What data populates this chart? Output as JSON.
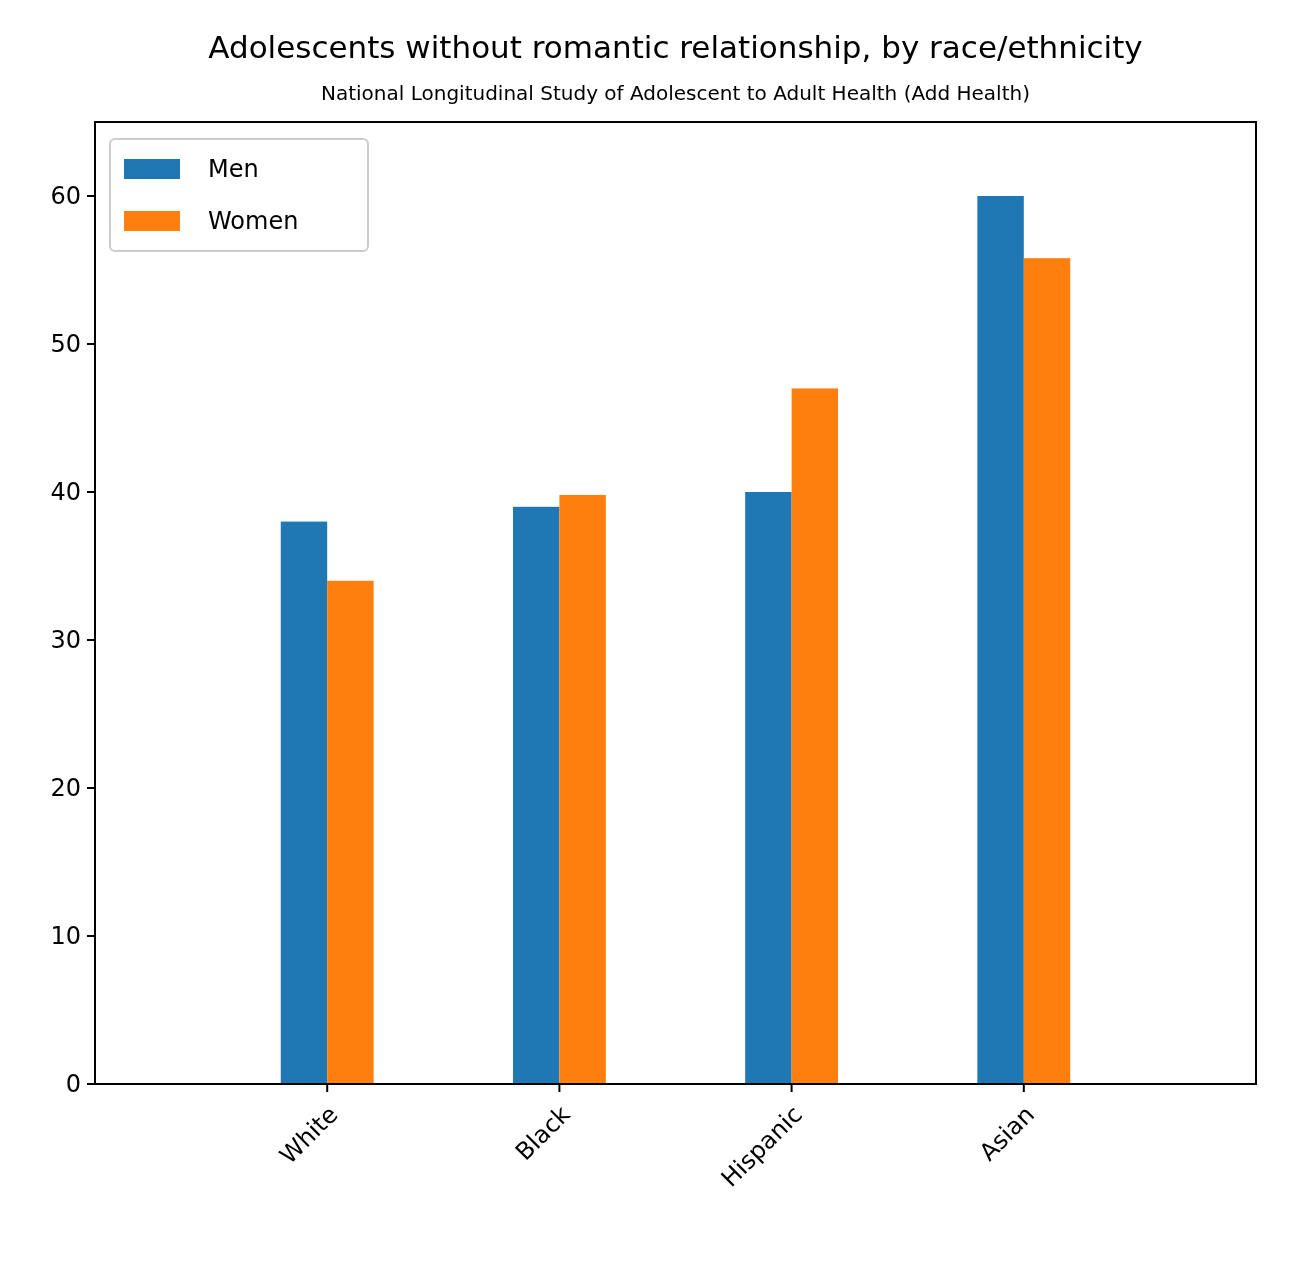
{
  "chart_data": {
    "type": "bar",
    "title": "Adolescents without romantic relationship, by race/ethnicity",
    "subtitle": "National Longitudinal Study of Adolescent to Adult Health (Add Health)",
    "categories": [
      "White",
      "Black",
      "Hispanic",
      "Asian"
    ],
    "series": [
      {
        "name": "Men",
        "color": "#1f77b4",
        "values": [
          38,
          39,
          40,
          60
        ]
      },
      {
        "name": "Women",
        "color": "#ff7f0e",
        "values": [
          34,
          39.8,
          47,
          55.8
        ]
      }
    ],
    "ylim": [
      0,
      65
    ],
    "yticks": [
      0,
      10,
      20,
      30,
      40,
      50,
      60
    ],
    "grid": false,
    "legend": "top left"
  }
}
